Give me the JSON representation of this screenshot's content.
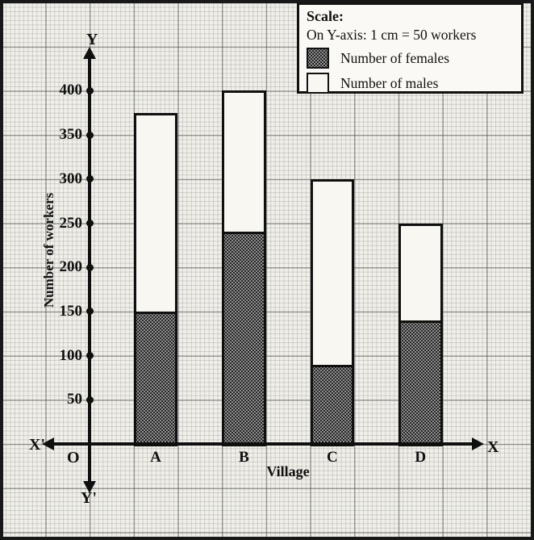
{
  "figure": {
    "legend": {
      "scale_title": "Scale:",
      "scale_text": "On Y-axis: 1 cm = 50 workers"
    },
    "axes": {
      "origin_label": "O",
      "end_labels": {
        "top": "Y",
        "bottom": "Y'",
        "left": "X'",
        "right": "X"
      }
    }
  },
  "chart_data": {
    "type": "bar",
    "stacked": true,
    "categories": [
      "A",
      "B",
      "C",
      "D"
    ],
    "series": [
      {
        "name": "Number of females",
        "values": [
          150,
          240,
          90,
          140
        ],
        "color": "#5a5a5a",
        "pattern": "halftone-dots"
      },
      {
        "name": "Number of males",
        "values": [
          225,
          160,
          210,
          110
        ],
        "color": "#f8f7f2"
      }
    ],
    "totals": [
      375,
      400,
      300,
      250
    ],
    "xlabel": "Village",
    "ylabel": "Number of workers",
    "yticks": [
      50,
      100,
      150,
      200,
      250,
      300,
      350,
      400
    ],
    "ylim": [
      0,
      425
    ],
    "scale_note": "On Y-axis: 1 cm = 50 workers",
    "grid": true,
    "legend_position": "top-right"
  },
  "colors": {
    "female_fill": "#5a5a5a",
    "male_fill": "#f8f7f2",
    "axis": "#0f0f0f",
    "paper": "#f0efe9"
  }
}
